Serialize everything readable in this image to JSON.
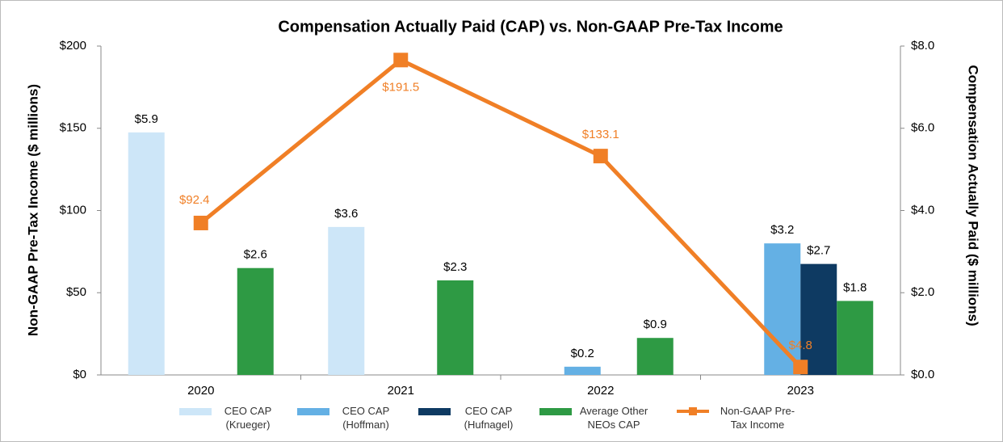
{
  "chart_data": {
    "type": "bar",
    "title": "Compensation Actually Paid (CAP) vs. Non-GAAP Pre-Tax Income",
    "y_label": "Non-GAAP Pre-Tax Income ($ millions)",
    "y2_label": "Compensation Actually Paid ($ millions)",
    "categories": [
      "2020",
      "2021",
      "2022",
      "2023"
    ],
    "ylim": [
      0,
      200
    ],
    "yticks": [
      {
        "value": 0,
        "label": "$0"
      },
      {
        "value": 50,
        "label": "$50"
      },
      {
        "value": 100,
        "label": "$100"
      },
      {
        "value": 150,
        "label": "$150"
      },
      {
        "value": 200,
        "label": "$200"
      }
    ],
    "y2lim": [
      0,
      8
    ],
    "y2ticks": [
      {
        "value": 0,
        "label": "$0.0"
      },
      {
        "value": 2,
        "label": "$2.0"
      },
      {
        "value": 4,
        "label": "$4.0"
      },
      {
        "value": 6,
        "label": "$6.0"
      },
      {
        "value": 8,
        "label": "$8.0"
      }
    ],
    "legend": "bottom",
    "series": [
      {
        "name": "CEO CAP (Krueger)",
        "type": "bar",
        "axis": "y2",
        "color": "#cde6f8",
        "values": [
          5.9,
          3.6,
          null,
          null
        ],
        "value_labels": [
          "$5.9",
          "$3.6",
          null,
          null
        ]
      },
      {
        "name": "CEO CAP (Hoffman)",
        "type": "bar",
        "axis": "y2",
        "color": "#64b0e4",
        "values": [
          null,
          null,
          0.2,
          3.2
        ],
        "value_labels": [
          null,
          null,
          "$0.2",
          "$3.2"
        ]
      },
      {
        "name": "CEO CAP (Hufnagel)",
        "type": "bar",
        "axis": "y2",
        "color": "#0e3a62",
        "values": [
          null,
          null,
          null,
          2.7
        ],
        "value_labels": [
          null,
          null,
          null,
          "$2.7"
        ]
      },
      {
        "name": "Average Other NEOs CAP",
        "type": "bar",
        "axis": "y2",
        "color": "#2e9a44",
        "values": [
          2.6,
          2.3,
          0.9,
          1.8
        ],
        "value_labels": [
          "$2.6",
          "$2.3",
          "$0.9",
          "$1.8"
        ]
      },
      {
        "name": "Non-GAAP Pre-Tax Income",
        "type": "line",
        "axis": "y",
        "color": "#f07f26",
        "values": [
          92.4,
          191.5,
          133.1,
          4.8
        ],
        "value_labels": [
          "$92.4",
          "$191.5",
          "$133.1",
          "$4.8"
        ]
      }
    ]
  }
}
